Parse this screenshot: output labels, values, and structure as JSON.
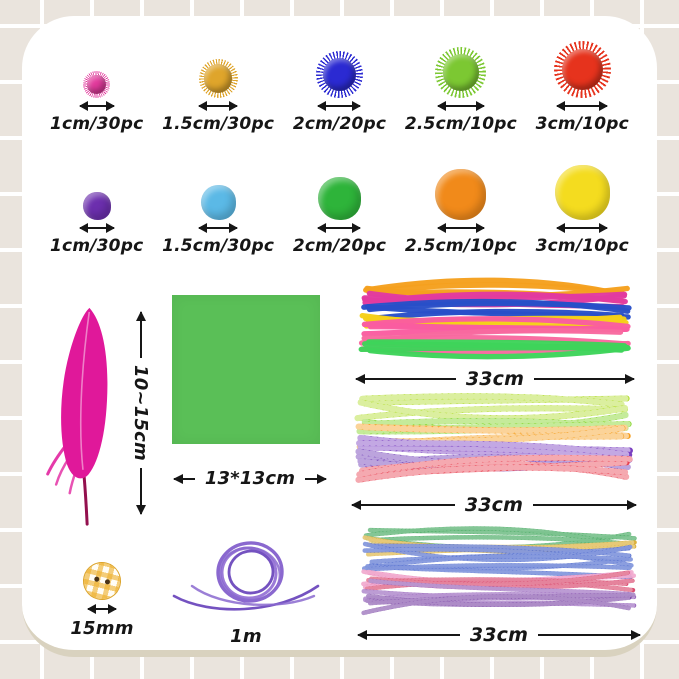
{
  "glitter_poms": {
    "items": [
      {
        "label": "1cm/30pc",
        "color": "#e23a9c"
      },
      {
        "label": "1.5cm/30pc",
        "color": "#dfa52b"
      },
      {
        "label": "2cm/20pc",
        "color": "#2b2ad2"
      },
      {
        "label": "2.5cm/10pc",
        "color": "#7cc832"
      },
      {
        "label": "3cm/10pc",
        "color": "#e6331d"
      }
    ]
  },
  "plain_poms": {
    "items": [
      {
        "label": "1cm/30pc",
        "color": "#6c2fae"
      },
      {
        "label": "1.5cm/30pc",
        "color": "#5bb9e6"
      },
      {
        "label": "2cm/20pc",
        "color": "#2eb43a"
      },
      {
        "label": "2.5cm/10pc",
        "color": "#f18a1a"
      },
      {
        "label": "3cm/10pc",
        "color": "#f4dc1f"
      }
    ]
  },
  "feather": {
    "label": "10~15cm",
    "color": "#e0189a"
  },
  "paper": {
    "label": "13*13cm",
    "color": "#5abf57"
  },
  "pipe_bundles": [
    {
      "label": "33cm",
      "style": "smooth",
      "colors": [
        "#f5a01e",
        "#e23aa0",
        "#2850c8",
        "#f5d018",
        "#fa5ca0",
        "#f8699f",
        "#3ed45a"
      ]
    },
    {
      "label": "33cm",
      "style": "striped",
      "colors": [
        "#b0dc2a",
        "#7ed321",
        "#f59e1e",
        "#7a3fc0",
        "#6a36b4",
        "#e84050"
      ]
    },
    {
      "label": "33cm",
      "style": "glitter",
      "colors": [
        "#2f9e4d",
        "#d8a828",
        "#3b5ac9",
        "#3b5ac9",
        "#e979b2",
        "#d63a62",
        "#8e56b6",
        "#7c47a6"
      ]
    }
  ],
  "button": {
    "label": "15mm",
    "color": "#eeb02d"
  },
  "cord": {
    "label": "1m",
    "color": "#8a68cf"
  }
}
